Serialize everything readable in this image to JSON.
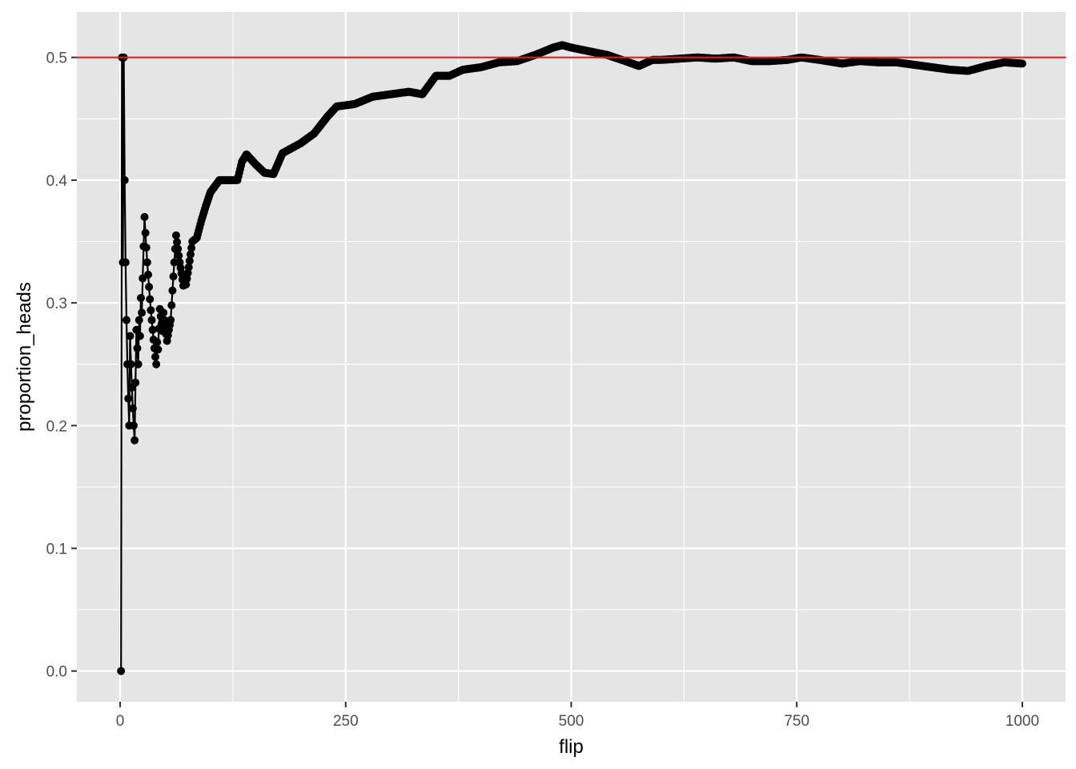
{
  "chart_data": {
    "type": "line",
    "title": "",
    "xlabel": "flip",
    "ylabel": "proportion_heads",
    "xlim": [
      -48,
      1048
    ],
    "ylim": [
      -0.025,
      0.537
    ],
    "x_ticks": [
      0,
      250,
      500,
      750,
      1000
    ],
    "x_tick_labels": [
      "0",
      "250",
      "500",
      "750",
      "1000"
    ],
    "y_ticks": [
      0.0,
      0.1,
      0.2,
      0.3,
      0.4,
      0.5
    ],
    "y_tick_labels": [
      "0.0",
      "0.1",
      "0.2",
      "0.3",
      "0.4",
      "0.5"
    ],
    "grid": true,
    "markers": true,
    "reference_line": {
      "y": 0.5,
      "color": "#e41a1c"
    },
    "colors": {
      "panel": "#e5e5e5",
      "grid": "#ffffff",
      "series": "#000000"
    },
    "anchors": [
      [
        1,
        0.0
      ],
      [
        2,
        0.5
      ],
      [
        3,
        0.333
      ],
      [
        4,
        0.5
      ],
      [
        5,
        0.4
      ],
      [
        6,
        0.333
      ],
      [
        7,
        0.286
      ],
      [
        8,
        0.25
      ],
      [
        9,
        0.222
      ],
      [
        10,
        0.2
      ],
      [
        11,
        0.273
      ],
      [
        12,
        0.25
      ],
      [
        13,
        0.231
      ],
      [
        14,
        0.214
      ],
      [
        15,
        0.2
      ],
      [
        16,
        0.188
      ],
      [
        17,
        0.235
      ],
      [
        18,
        0.278
      ],
      [
        19,
        0.263
      ],
      [
        20,
        0.25
      ],
      [
        21,
        0.286
      ],
      [
        22,
        0.273
      ],
      [
        23,
        0.304
      ],
      [
        24,
        0.292
      ],
      [
        25,
        0.32
      ],
      [
        26,
        0.346
      ],
      [
        27,
        0.37
      ],
      [
        28,
        0.357
      ],
      [
        29,
        0.345
      ],
      [
        30,
        0.333
      ],
      [
        31,
        0.323
      ],
      [
        32,
        0.313
      ],
      [
        33,
        0.303
      ],
      [
        34,
        0.294
      ],
      [
        35,
        0.286
      ],
      [
        36,
        0.278
      ],
      [
        37,
        0.27
      ],
      [
        38,
        0.263
      ],
      [
        39,
        0.256
      ],
      [
        40,
        0.25
      ],
      [
        41,
        0.268
      ],
      [
        42,
        0.262
      ],
      [
        43,
        0.279
      ],
      [
        44,
        0.295
      ],
      [
        45,
        0.289
      ],
      [
        46,
        0.283
      ],
      [
        47,
        0.277
      ],
      [
        48,
        0.292
      ],
      [
        49,
        0.286
      ],
      [
        50,
        0.28
      ],
      [
        52,
        0.269
      ],
      [
        54,
        0.278
      ],
      [
        56,
        0.286
      ],
      [
        58,
        0.31
      ],
      [
        60,
        0.333
      ],
      [
        62,
        0.355
      ],
      [
        64,
        0.344
      ],
      [
        66,
        0.333
      ],
      [
        68,
        0.324
      ],
      [
        70,
        0.314
      ],
      [
        73,
        0.315
      ],
      [
        76,
        0.329
      ],
      [
        80,
        0.35
      ],
      [
        85,
        0.353
      ],
      [
        90,
        0.367
      ],
      [
        95,
        0.379
      ],
      [
        100,
        0.39
      ],
      [
        110,
        0.4
      ],
      [
        125,
        0.4
      ],
      [
        130,
        0.4
      ],
      [
        135,
        0.415
      ],
      [
        140,
        0.421
      ],
      [
        150,
        0.413
      ],
      [
        160,
        0.406
      ],
      [
        170,
        0.405
      ],
      [
        180,
        0.422
      ],
      [
        200,
        0.43
      ],
      [
        215,
        0.438
      ],
      [
        230,
        0.452
      ],
      [
        240,
        0.46
      ],
      [
        260,
        0.462
      ],
      [
        280,
        0.468
      ],
      [
        300,
        0.47
      ],
      [
        320,
        0.472
      ],
      [
        335,
        0.47
      ],
      [
        350,
        0.485
      ],
      [
        365,
        0.485
      ],
      [
        380,
        0.49
      ],
      [
        400,
        0.492
      ],
      [
        420,
        0.496
      ],
      [
        440,
        0.497
      ],
      [
        460,
        0.502
      ],
      [
        480,
        0.508
      ],
      [
        490,
        0.51
      ],
      [
        500,
        0.508
      ],
      [
        520,
        0.505
      ],
      [
        540,
        0.502
      ],
      [
        560,
        0.497
      ],
      [
        575,
        0.493
      ],
      [
        590,
        0.498
      ],
      [
        600,
        0.498
      ],
      [
        620,
        0.499
      ],
      [
        640,
        0.5
      ],
      [
        660,
        0.499
      ],
      [
        680,
        0.5
      ],
      [
        700,
        0.497
      ],
      [
        720,
        0.497
      ],
      [
        740,
        0.498
      ],
      [
        755,
        0.5
      ],
      [
        775,
        0.498
      ],
      [
        800,
        0.495
      ],
      [
        820,
        0.497
      ],
      [
        840,
        0.496
      ],
      [
        860,
        0.496
      ],
      [
        880,
        0.494
      ],
      [
        900,
        0.492
      ],
      [
        920,
        0.49
      ],
      [
        940,
        0.489
      ],
      [
        960,
        0.493
      ],
      [
        980,
        0.496
      ],
      [
        1000,
        0.495
      ]
    ]
  }
}
